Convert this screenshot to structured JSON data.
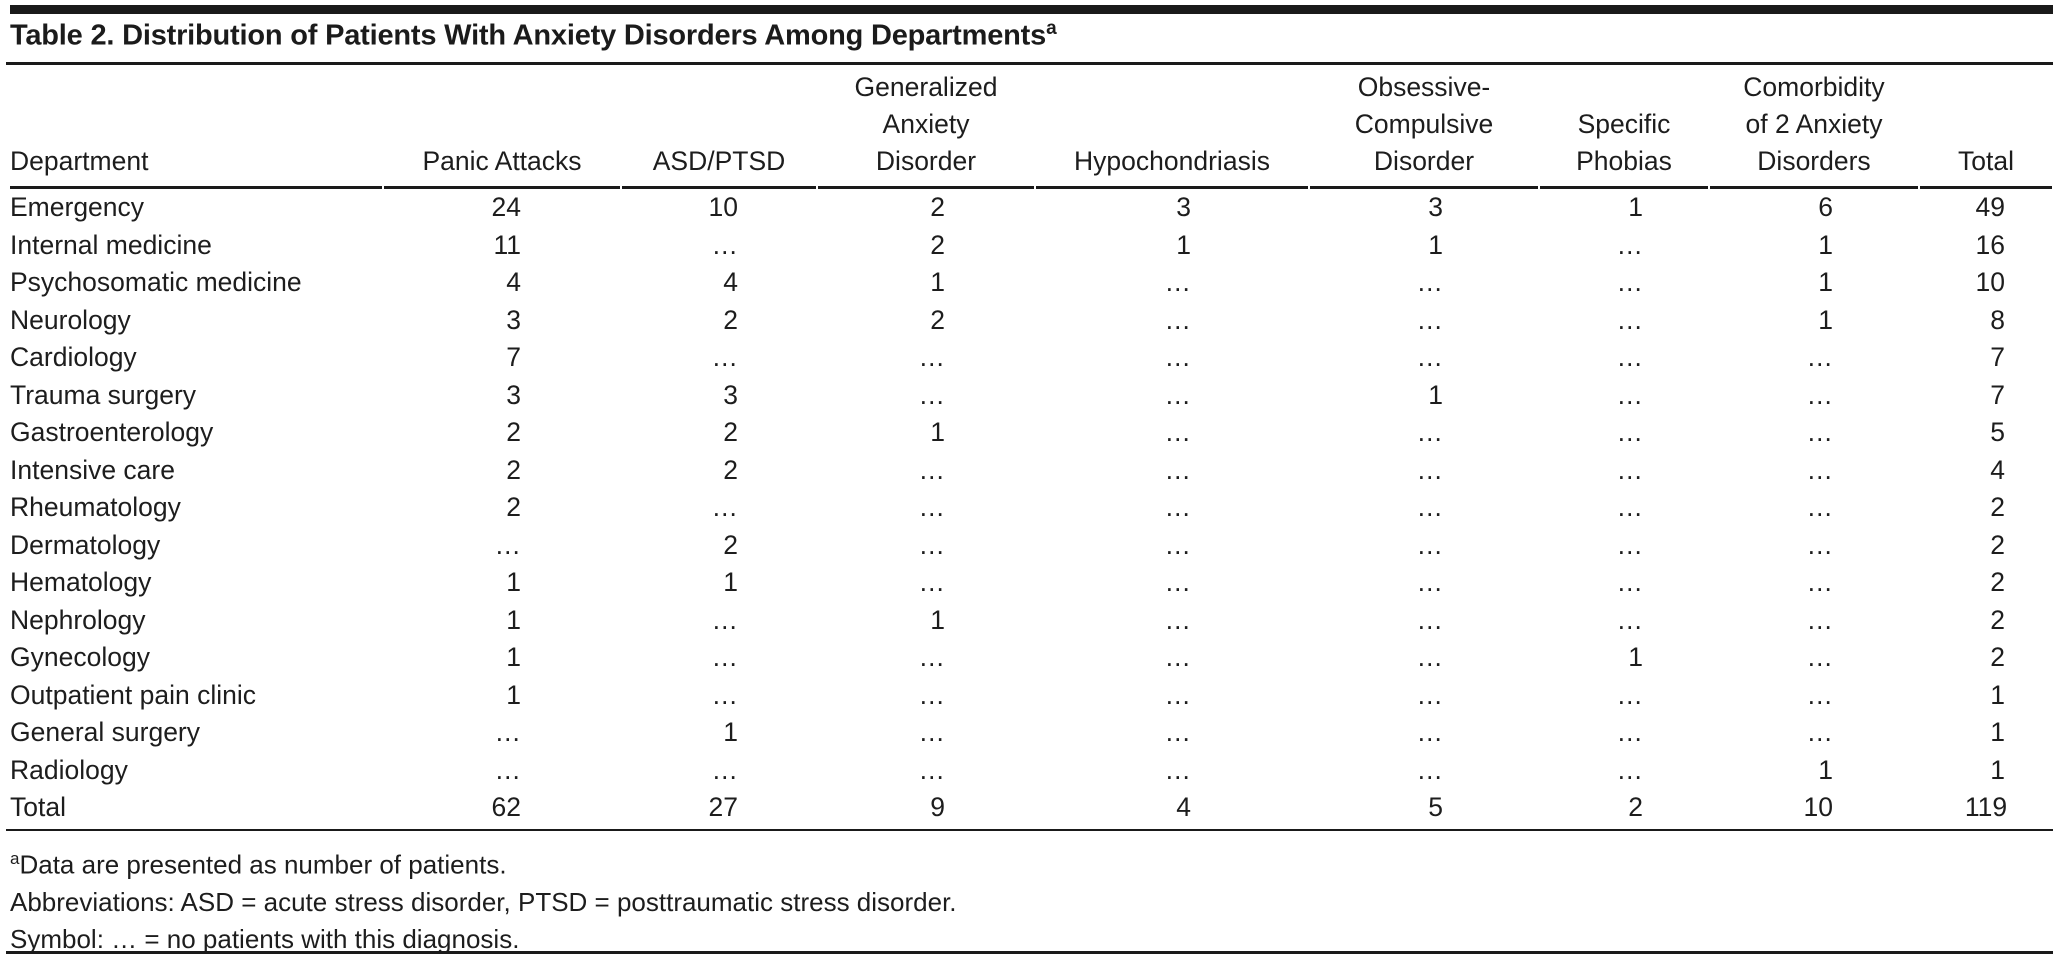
{
  "table": {
    "title": "Table 2. Distribution of Patients With Anxiety Disorders Among Departments",
    "title_superscript": "a",
    "columns": [
      [
        "Department"
      ],
      [
        "Panic Attacks"
      ],
      [
        "ASD/PTSD"
      ],
      [
        "Generalized",
        "Anxiety",
        "Disorder"
      ],
      [
        "Hypochondriasis"
      ],
      [
        "Obsessive-",
        "Compulsive",
        "Disorder"
      ],
      [
        "Specific",
        "Phobias"
      ],
      [
        "Comorbidity",
        "of 2 Anxiety",
        "Disorders"
      ],
      [
        "Total"
      ]
    ],
    "rows": [
      [
        "Emergency",
        "24",
        "10",
        "2",
        "3",
        "3",
        "1",
        "6",
        "49"
      ],
      [
        "Internal medicine",
        "11",
        "…",
        "2",
        "1",
        "1",
        "…",
        "1",
        "16"
      ],
      [
        "Psychosomatic medicine",
        "4",
        "4",
        "1",
        "…",
        "…",
        "…",
        "1",
        "10"
      ],
      [
        "Neurology",
        "3",
        "2",
        "2",
        "…",
        "…",
        "…",
        "1",
        "8"
      ],
      [
        "Cardiology",
        "7",
        "…",
        "…",
        "…",
        "…",
        "…",
        "…",
        "7"
      ],
      [
        "Trauma surgery",
        "3",
        "3",
        "…",
        "…",
        "1",
        "…",
        "…",
        "7"
      ],
      [
        "Gastroenterology",
        "2",
        "2",
        "1",
        "…",
        "…",
        "…",
        "…",
        "5"
      ],
      [
        "Intensive care",
        "2",
        "2",
        "…",
        "…",
        "…",
        "…",
        "…",
        "4"
      ],
      [
        "Rheumatology",
        "2",
        "…",
        "…",
        "…",
        "…",
        "…",
        "…",
        "2"
      ],
      [
        "Dermatology",
        "…",
        "2",
        "…",
        "…",
        "…",
        "…",
        "…",
        "2"
      ],
      [
        "Hematology",
        "1",
        "1",
        "…",
        "…",
        "…",
        "…",
        "…",
        "2"
      ],
      [
        "Nephrology",
        "1",
        "…",
        "1",
        "…",
        "…",
        "…",
        "…",
        "2"
      ],
      [
        "Gynecology",
        "1",
        "…",
        "…",
        "…",
        "…",
        "1",
        "…",
        "2"
      ],
      [
        "Outpatient pain clinic",
        "1",
        "…",
        "…",
        "…",
        "…",
        "…",
        "…",
        "1"
      ],
      [
        "General surgery",
        "…",
        "1",
        "…",
        "…",
        "…",
        "…",
        "…",
        "1"
      ],
      [
        "Radiology",
        "…",
        "…",
        "…",
        "…",
        "…",
        "…",
        "1",
        "1"
      ],
      [
        "Total",
        "62",
        "27",
        "9",
        "4",
        "5",
        "2",
        "10",
        "119"
      ]
    ],
    "footnotes": [
      {
        "superscript": "a",
        "text": "Data are presented as number of patients."
      },
      {
        "text": "Abbreviations: ASD = acute stress disorder, PTSD = posttraumatic stress disorder."
      },
      {
        "text": "Symbol: … = no patients with this diagnosis."
      }
    ],
    "colors": {
      "rule": "#1a1a1a",
      "text": "#1d1d1d",
      "background": "#ffffff"
    }
  }
}
